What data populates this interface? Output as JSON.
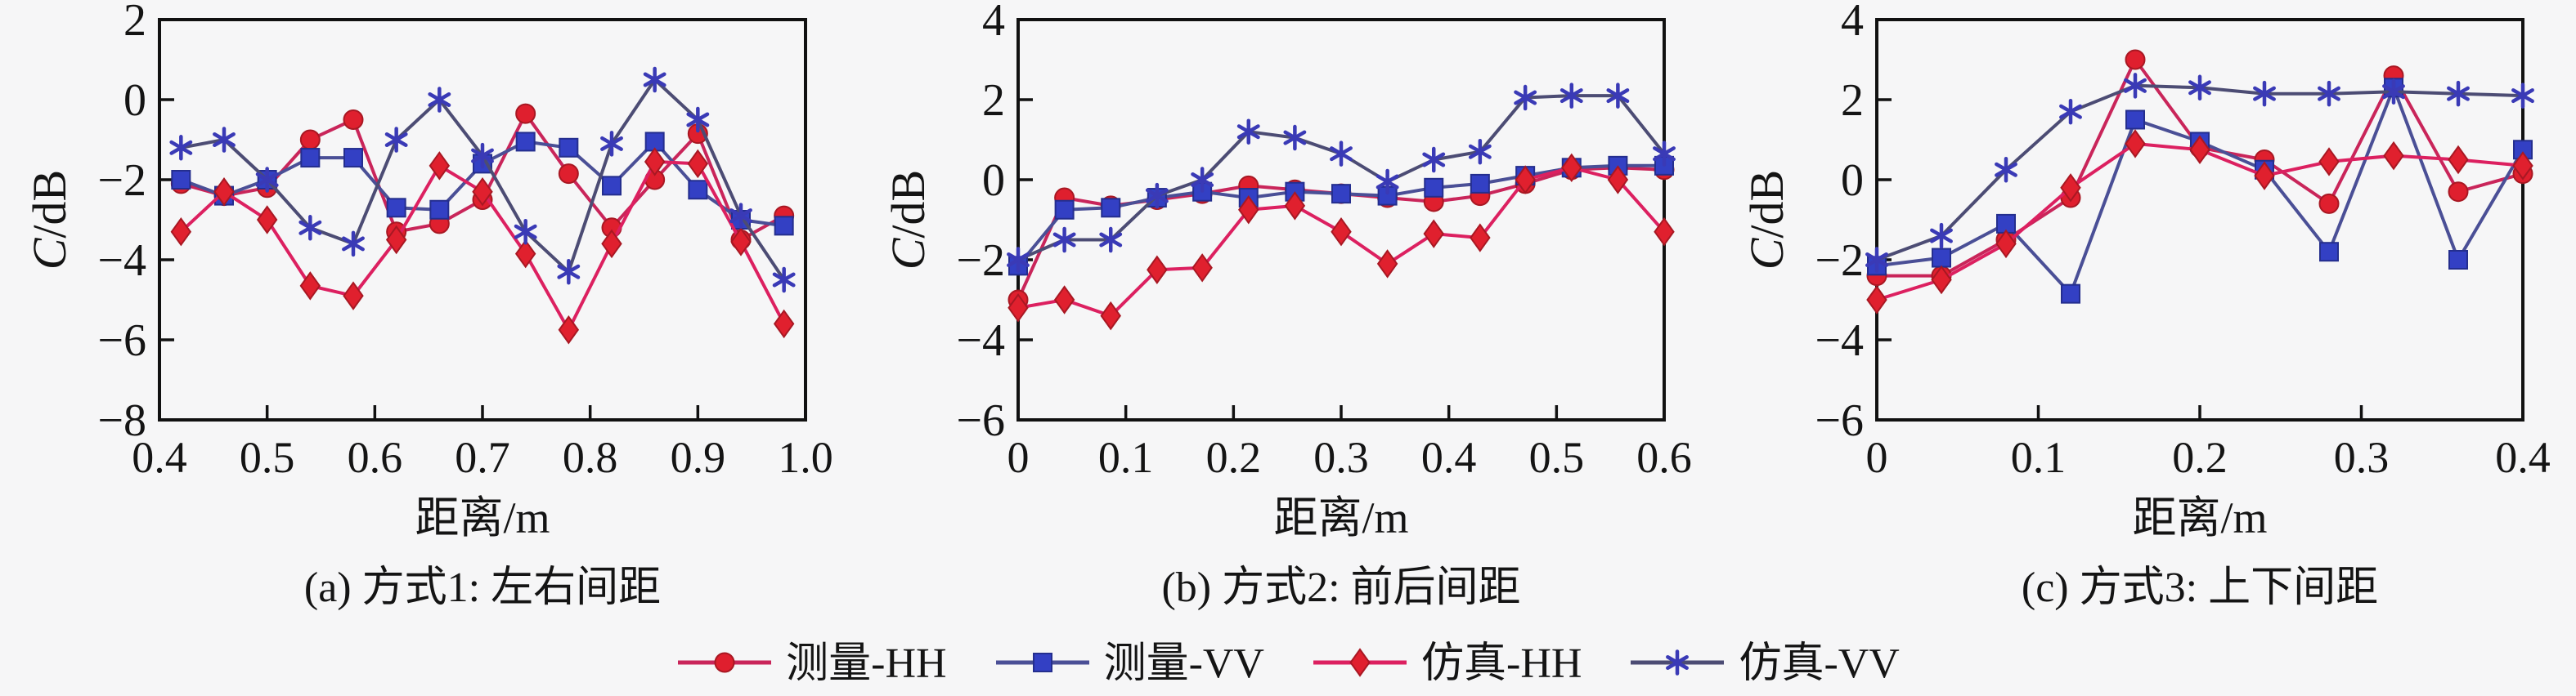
{
  "figure": {
    "background": "#f6f6f7",
    "axis_color": "#111111",
    "text_color": "#141414"
  },
  "legend": {
    "items": [
      {
        "label": "测量-HH",
        "marker": "circle",
        "line_color": "#c9255a",
        "marker_color": "#df1f2e",
        "marker_edge": "#a81823"
      },
      {
        "label": "测量-VV",
        "marker": "square",
        "line_color": "#4a4f96",
        "marker_color": "#3340c4",
        "marker_edge": "#242e8e"
      },
      {
        "label": "仿真-HH",
        "marker": "diamond",
        "line_color": "#dc2060",
        "marker_color": "#e0202e",
        "marker_edge": "#a81823"
      },
      {
        "label": "仿真-VV",
        "marker": "asterisk",
        "line_color": "#4c4c74",
        "marker_color": "#3a3ab6",
        "marker_edge": "#3a3ab6"
      }
    ]
  },
  "chart_data": [
    {
      "type": "line",
      "caption": "(a) 方式1: 左右间距",
      "xlabel": "距离/m",
      "ylabel_italic": "C",
      "ylabel_rest": "/dB",
      "xlim": [
        0.4,
        1.0
      ],
      "ylim": [
        -8,
        2
      ],
      "xticks": [
        0.4,
        0.5,
        0.6,
        0.7,
        0.8,
        0.9,
        1.0
      ],
      "xtick_labels": [
        "0.4",
        "0.5",
        "0.6",
        "0.7",
        "0.8",
        "0.9",
        "1.0"
      ],
      "yticks": [
        2,
        0,
        -2,
        -4,
        -6,
        -8
      ],
      "ytick_labels": [
        "2",
        "0",
        "−2",
        "−4",
        "−6",
        "−8"
      ],
      "x": [
        0.42,
        0.46,
        0.5,
        0.54,
        0.58,
        0.62,
        0.66,
        0.7,
        0.74,
        0.78,
        0.82,
        0.86,
        0.9,
        0.94,
        0.98
      ],
      "series": [
        {
          "name": "测量-HH",
          "marker": "circle",
          "values": [
            -2.1,
            -2.4,
            -2.2,
            -1.0,
            -0.5,
            -3.3,
            -3.1,
            -2.5,
            -0.35,
            -1.85,
            -3.2,
            -2.0,
            -0.85,
            -3.5,
            -2.9
          ]
        },
        {
          "name": "测量-VV",
          "marker": "square",
          "values": [
            -2.0,
            -2.4,
            -2.0,
            -1.45,
            -1.45,
            -2.7,
            -2.75,
            -1.6,
            -1.05,
            -1.2,
            -2.15,
            -1.05,
            -2.25,
            -3.0,
            -3.15
          ]
        },
        {
          "name": "仿真-HH",
          "marker": "diamond",
          "values": [
            -3.3,
            -2.3,
            -3.0,
            -4.65,
            -4.9,
            -3.5,
            -1.65,
            -2.3,
            -3.85,
            -5.75,
            -3.6,
            -1.55,
            -1.6,
            -3.55,
            -5.6
          ]
        },
        {
          "name": "仿真-VV",
          "marker": "asterisk",
          "values": [
            -1.2,
            -1.0,
            -2.0,
            -3.2,
            -3.6,
            -1.0,
            0.0,
            -1.4,
            -3.3,
            -4.3,
            -1.1,
            0.5,
            -0.5,
            -2.9,
            -4.5
          ]
        }
      ]
    },
    {
      "type": "line",
      "caption": "(b) 方式2: 前后间距",
      "xlabel": "距离/m",
      "ylabel_italic": "C",
      "ylabel_rest": "/dB",
      "xlim": [
        0,
        0.6
      ],
      "ylim": [
        -6,
        4
      ],
      "xticks": [
        0,
        0.1,
        0.2,
        0.3,
        0.4,
        0.5,
        0.6
      ],
      "xtick_labels": [
        "0",
        "0.1",
        "0.2",
        "0.3",
        "0.4",
        "0.5",
        "0.6"
      ],
      "yticks": [
        4,
        2,
        0,
        -2,
        -4,
        -6
      ],
      "ytick_labels": [
        "4",
        "2",
        "0",
        "−2",
        "−4",
        "−6"
      ],
      "x": [
        0,
        0.043,
        0.086,
        0.129,
        0.171,
        0.214,
        0.257,
        0.3,
        0.343,
        0.386,
        0.429,
        0.471,
        0.514,
        0.557,
        0.6
      ],
      "series": [
        {
          "name": "测量-HH",
          "marker": "circle",
          "values": [
            -3.0,
            -0.45,
            -0.65,
            -0.5,
            -0.35,
            -0.15,
            -0.25,
            -0.35,
            -0.45,
            -0.55,
            -0.4,
            -0.1,
            0.25,
            0.3,
            0.25
          ]
        },
        {
          "name": "测量-VV",
          "marker": "square",
          "values": [
            -2.15,
            -0.75,
            -0.7,
            -0.45,
            -0.3,
            -0.45,
            -0.3,
            -0.35,
            -0.4,
            -0.2,
            -0.1,
            0.1,
            0.3,
            0.35,
            0.35
          ]
        },
        {
          "name": "仿真-HH",
          "marker": "diamond",
          "values": [
            -3.2,
            -3.0,
            -3.4,
            -2.25,
            -2.2,
            -0.75,
            -0.65,
            -1.3,
            -2.1,
            -1.35,
            -1.45,
            0.0,
            0.3,
            0.0,
            -1.3
          ]
        },
        {
          "name": "仿真-VV",
          "marker": "asterisk",
          "values": [
            -2.0,
            -1.5,
            -1.5,
            -0.4,
            0.0,
            1.2,
            1.05,
            0.65,
            -0.05,
            0.5,
            0.7,
            2.05,
            2.1,
            2.1,
            0.65
          ]
        }
      ]
    },
    {
      "type": "line",
      "caption": "(c) 方式3: 上下间距",
      "xlabel": "距离/m",
      "ylabel_italic": "C",
      "ylabel_rest": "/dB",
      "xlim": [
        0,
        0.4
      ],
      "ylim": [
        -6,
        4
      ],
      "xticks": [
        0,
        0.1,
        0.2,
        0.3,
        0.4
      ],
      "xtick_labels": [
        "0",
        "0.1",
        "0.2",
        "0.3",
        "0.4"
      ],
      "yticks": [
        4,
        2,
        0,
        -2,
        -4,
        -6
      ],
      "ytick_labels": [
        "4",
        "2",
        "0",
        "−2",
        "−4",
        "−6"
      ],
      "x": [
        0,
        0.04,
        0.08,
        0.12,
        0.16,
        0.2,
        0.24,
        0.28,
        0.32,
        0.36,
        0.4
      ],
      "series": [
        {
          "name": "测量-HH",
          "marker": "circle",
          "values": [
            -2.4,
            -2.4,
            -1.5,
            -0.45,
            3.0,
            0.8,
            0.5,
            -0.6,
            2.6,
            -0.3,
            0.15
          ]
        },
        {
          "name": "测量-VV",
          "marker": "square",
          "values": [
            -2.15,
            -1.95,
            -1.1,
            -2.85,
            1.5,
            0.95,
            0.25,
            -1.8,
            2.3,
            -2.0,
            0.75
          ]
        },
        {
          "name": "仿真-HH",
          "marker": "diamond",
          "values": [
            -3.0,
            -2.5,
            -1.6,
            -0.2,
            0.9,
            0.75,
            0.1,
            0.45,
            0.6,
            0.5,
            0.35
          ]
        },
        {
          "name": "仿真-VV",
          "marker": "asterisk",
          "values": [
            -2.0,
            -1.4,
            0.25,
            1.7,
            2.35,
            2.3,
            2.15,
            2.15,
            2.2,
            2.15,
            2.1
          ]
        }
      ]
    }
  ]
}
